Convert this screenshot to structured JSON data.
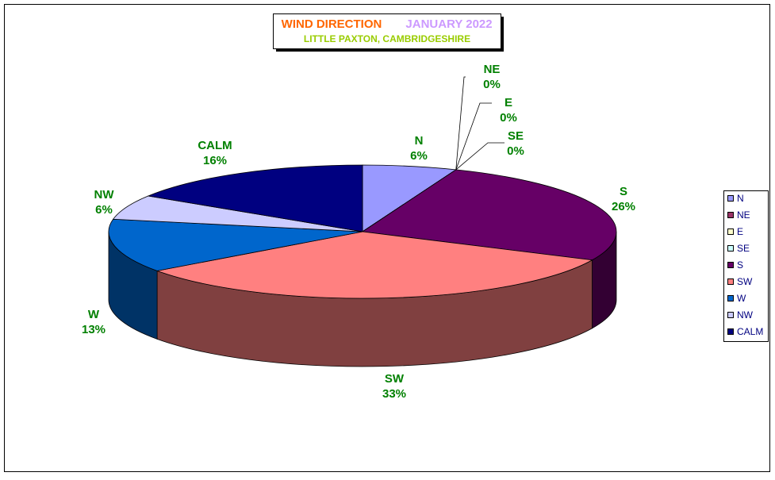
{
  "chart_data": {
    "type": "pie3d",
    "title": "WIND DIRECTION",
    "title_date": "JANUARY 2022",
    "subtitle": "LITTLE PAXTON, CAMBRIDGESHIRE",
    "categories": [
      "N",
      "NE",
      "E",
      "SE",
      "S",
      "SW",
      "W",
      "NW",
      "CALM"
    ],
    "values": [
      6,
      0,
      0,
      0,
      26,
      33,
      13,
      6,
      16
    ],
    "value_labels": [
      "6%",
      "0%",
      "0%",
      "0%",
      "26%",
      "33%",
      "13%",
      "6%",
      "16%"
    ],
    "colors": [
      "#9999ff",
      "#993366",
      "#ffffcc",
      "#ccffff",
      "#660066",
      "#ff8080",
      "#0066cc",
      "#ccccff",
      "#000080"
    ],
    "legend": "right"
  }
}
